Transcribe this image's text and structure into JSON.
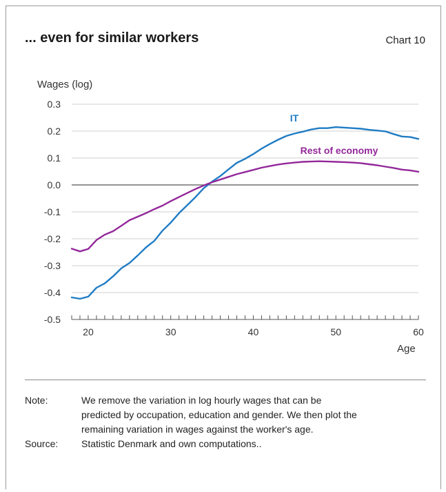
{
  "title": "... even for similar workers",
  "chart_number": "Chart 10",
  "note_label": "Note:",
  "note_text": "We remove the variation in log hourly wages that can be predicted by occupation, education and gender. We then plot the remaining variation in wages against the worker's age.",
  "source_label": "Source:",
  "source_text": "Statistic Denmark and own computations..",
  "chart_data": {
    "type": "line",
    "ylabel": "Wages (log)",
    "xlabel": "Age",
    "xlim": [
      18,
      60
    ],
    "ylim": [
      -0.5,
      0.3
    ],
    "xticks": [
      20,
      30,
      40,
      50,
      60
    ],
    "yticks": [
      0.3,
      0.2,
      0.1,
      0.0,
      -0.1,
      -0.2,
      -0.3,
      -0.4,
      -0.5
    ],
    "ytick_labels": [
      "0.3",
      "0.2",
      "0.1",
      "0.0",
      "-0.1",
      "-0.2",
      "-0.3",
      "-0.4",
      "-0.5"
    ],
    "grid": true,
    "x": [
      18,
      19,
      20,
      21,
      22,
      23,
      24,
      25,
      26,
      27,
      28,
      29,
      30,
      31,
      32,
      33,
      34,
      35,
      36,
      37,
      38,
      39,
      40,
      41,
      42,
      43,
      44,
      45,
      46,
      47,
      48,
      49,
      50,
      51,
      52,
      53,
      54,
      55,
      56,
      57,
      58,
      59,
      60
    ],
    "series": [
      {
        "name": "IT",
        "color": "#1f7cc4",
        "values": [
          -0.418,
          -0.423,
          -0.415,
          -0.382,
          -0.366,
          -0.34,
          -0.31,
          -0.29,
          -0.262,
          -0.232,
          -0.208,
          -0.17,
          -0.14,
          -0.105,
          -0.075,
          -0.045,
          -0.012,
          0.012,
          0.033,
          0.058,
          0.082,
          0.097,
          0.115,
          0.135,
          0.152,
          0.168,
          0.182,
          0.191,
          0.198,
          0.206,
          0.211,
          0.211,
          0.215,
          0.213,
          0.211,
          0.209,
          0.205,
          0.202,
          0.199,
          0.189,
          0.18,
          0.178,
          0.171
        ]
      },
      {
        "name": "Rest of economy",
        "color": "#93279a",
        "values": [
          -0.237,
          -0.247,
          -0.238,
          -0.205,
          -0.185,
          -0.172,
          -0.152,
          -0.131,
          -0.118,
          -0.105,
          -0.09,
          -0.077,
          -0.06,
          -0.045,
          -0.03,
          -0.015,
          -0.002,
          0.01,
          0.02,
          0.03,
          0.04,
          0.048,
          0.056,
          0.064,
          0.07,
          0.076,
          0.08,
          0.083,
          0.086,
          0.087,
          0.088,
          0.087,
          0.086,
          0.085,
          0.083,
          0.081,
          0.077,
          0.073,
          0.068,
          0.063,
          0.057,
          0.054,
          0.049
        ]
      }
    ]
  }
}
